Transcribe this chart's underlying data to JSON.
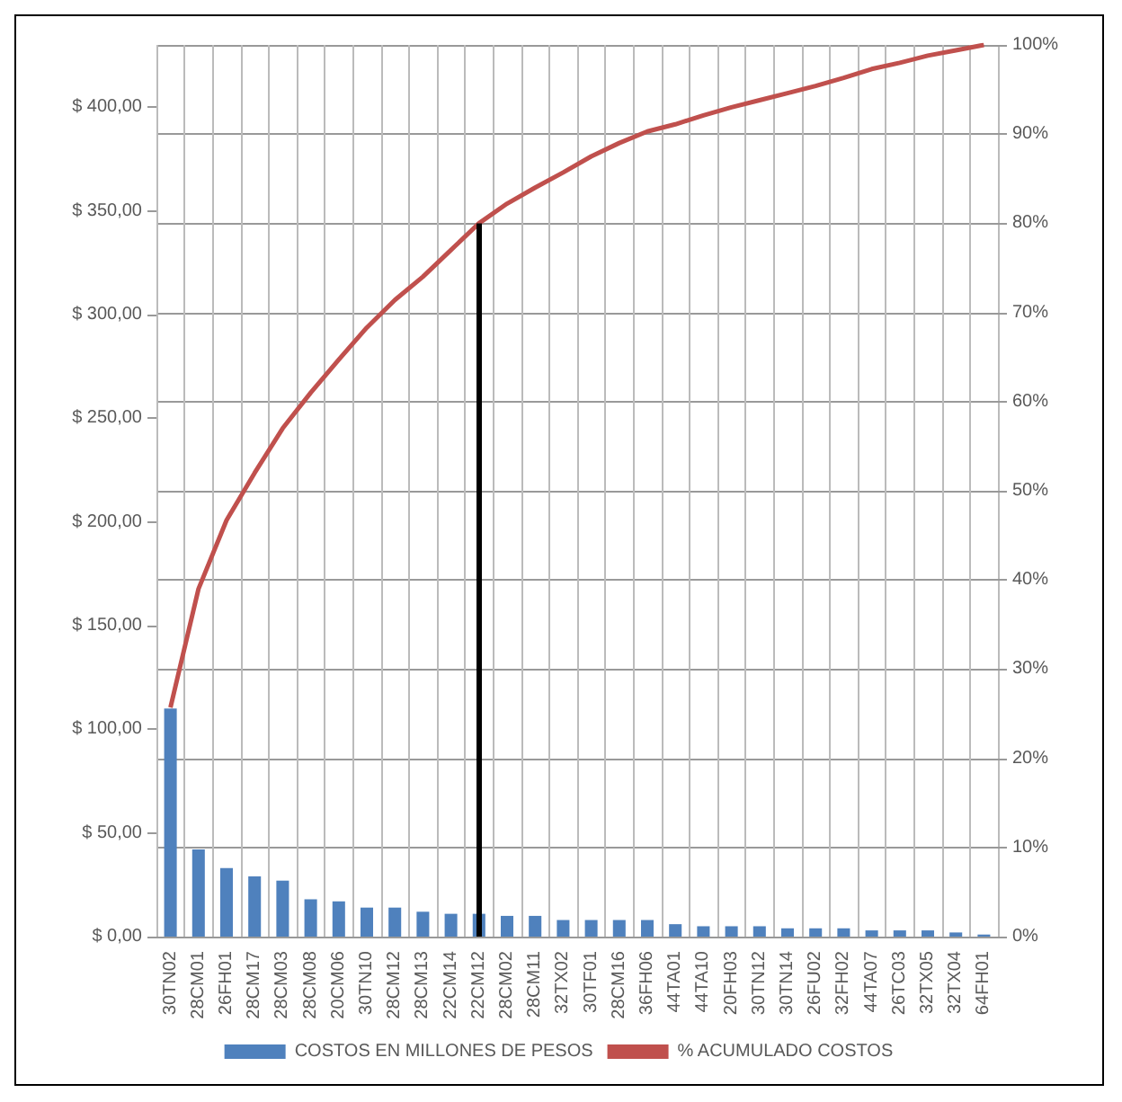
{
  "chart_data": {
    "type": "bar",
    "categories": [
      "30TN02",
      "28CM01",
      "26FH01",
      "28CM17",
      "28CM03",
      "28CM08",
      "20CM06",
      "30TN10",
      "28CM12",
      "28CM13",
      "22CM14",
      "22CM12",
      "28CM02",
      "28CM11",
      "32TX02",
      "30TF01",
      "28CM16",
      "36FH06",
      "44TA01",
      "44TA10",
      "20FH03",
      "30TN12",
      "30TN14",
      "26FU02",
      "32FH02",
      "44TA07",
      "26TC03",
      "32TX05",
      "32TX04",
      "64FH01"
    ],
    "series": [
      {
        "name": "COSTOS EN MILLONES DE PESOS",
        "color": "#4f81bd",
        "values": [
          110,
          42,
          33,
          29,
          27,
          18,
          17,
          14,
          14,
          12,
          11,
          11,
          10,
          10,
          8,
          8,
          8,
          8,
          6,
          5,
          5,
          5,
          4,
          4,
          4,
          3,
          3,
          3,
          2,
          1
        ]
      },
      {
        "name": "% ACUMULADO COSTOS",
        "type": "line",
        "axis": "y2",
        "color": "#c0504d",
        "values": [
          25.7,
          39,
          46.7,
          52,
          57,
          61,
          64.7,
          68.3,
          71.4,
          74,
          77,
          80,
          82.2,
          84,
          85.7,
          87.5,
          89,
          90.3,
          91.1,
          92.1,
          93,
          93.8,
          94.6,
          95.4,
          96.3,
          97.3,
          98,
          98.8,
          99.4,
          100
        ]
      }
    ],
    "ylim": [
      0,
      430
    ],
    "yticks": [
      {
        "value": 0,
        "label": "$ 0,00"
      },
      {
        "value": 50,
        "label": "$ 50,00"
      },
      {
        "value": 100,
        "label": "$ 100,00"
      },
      {
        "value": 150,
        "label": "$ 150,00"
      },
      {
        "value": 200,
        "label": "$ 200,00"
      },
      {
        "value": 250,
        "label": "$ 250,00"
      },
      {
        "value": 300,
        "label": "$ 300,00"
      },
      {
        "value": 350,
        "label": "$ 350,00"
      },
      {
        "value": 400,
        "label": "$ 400,00"
      }
    ],
    "y2lim": [
      0,
      100
    ],
    "y2ticks": [
      {
        "value": 0,
        "label": "0%"
      },
      {
        "value": 10,
        "label": "10%"
      },
      {
        "value": 20,
        "label": "20%"
      },
      {
        "value": 30,
        "label": "30%"
      },
      {
        "value": 40,
        "label": "40%"
      },
      {
        "value": 50,
        "label": "50%"
      },
      {
        "value": 60,
        "label": "60%"
      },
      {
        "value": 70,
        "label": "70%"
      },
      {
        "value": 80,
        "label": "80%"
      },
      {
        "value": 90,
        "label": "90%"
      },
      {
        "value": 100,
        "label": "100%"
      }
    ],
    "ref_lines": [
      {
        "axis": "x",
        "value": "22CM12",
        "color": "#000000"
      }
    ],
    "grid": true,
    "legend": "bottom"
  }
}
